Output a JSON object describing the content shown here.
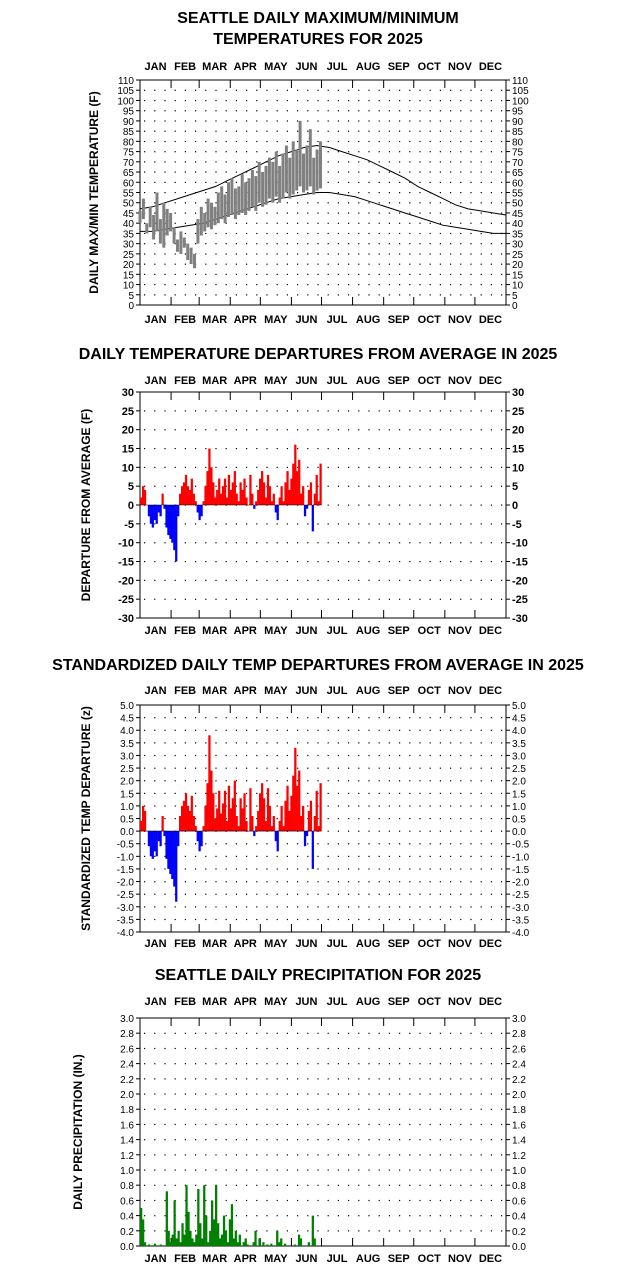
{
  "chart_data": [
    {
      "type": "line",
      "title": "SEATTLE DAILY MAXIMUM/MINIMUM",
      "subtitle": "TEMPERATURES FOR 2025",
      "ylabel": "DAILY MAX/MIN TEMPERATURE (F)",
      "ylim": [
        0,
        110
      ],
      "yticks": [
        0,
        5,
        10,
        15,
        20,
        25,
        30,
        35,
        40,
        45,
        50,
        55,
        60,
        65,
        70,
        75,
        80,
        85,
        90,
        95,
        100,
        105,
        110
      ],
      "months": [
        "JAN",
        "FEB",
        "MAR",
        "APR",
        "MAY",
        "JUN",
        "JUL",
        "AUG",
        "SEP",
        "OCT",
        "NOV",
        "DEC"
      ],
      "grid": true,
      "series": [
        {
          "values": [
            47,
            48,
            50,
            52,
            54,
            56,
            58,
            61,
            64,
            67,
            70,
            73,
            75,
            77,
            78,
            77,
            75,
            73,
            71,
            68,
            65,
            62,
            58,
            55,
            52,
            49,
            47,
            46,
            45,
            44
          ]
        },
        {
          "values": [
            36,
            36,
            37,
            38,
            39,
            40,
            42,
            44,
            46,
            48,
            50,
            52,
            53,
            54,
            55,
            55,
            54,
            53,
            51,
            49,
            47,
            45,
            43,
            41,
            39,
            38,
            37,
            36,
            35,
            35
          ]
        },
        {
          "values": [
            46,
            52,
            40,
            48,
            44,
            55,
            42,
            50,
            47,
            45,
            38,
            32,
            36,
            33,
            30,
            28,
            25,
            42,
            48,
            45,
            52,
            50,
            48,
            55,
            58,
            54,
            60,
            62,
            57,
            58,
            64,
            60,
            62,
            66,
            63,
            70,
            65,
            68,
            72,
            70,
            75,
            68,
            74,
            78,
            72,
            80,
            76,
            90,
            74,
            78,
            86,
            72,
            76,
            80
          ],
          "lows": [
            40,
            42,
            35,
            38,
            32,
            36,
            30,
            28,
            34,
            36,
            30,
            26,
            25,
            28,
            22,
            20,
            18,
            30,
            34,
            36,
            38,
            37,
            39,
            40,
            42,
            40,
            43,
            44,
            42,
            44,
            45,
            44,
            46,
            48,
            46,
            50,
            48,
            49,
            52,
            50,
            53,
            50,
            52,
            55,
            52,
            54,
            56,
            58,
            55,
            56,
            58,
            54,
            56,
            57
          ]
        }
      ]
    },
    {
      "type": "bar",
      "title": "DAILY TEMPERATURE DEPARTURES FROM AVERAGE IN 2025",
      "ylabel": "DEPARTURE FROM AVERAGE (F)",
      "ylim": [
        -30,
        30
      ],
      "yticks": [
        -30,
        -25,
        -20,
        -15,
        -10,
        -5,
        0,
        5,
        10,
        15,
        20,
        25,
        30
      ],
      "months": [
        "JAN",
        "FEB",
        "MAR",
        "APR",
        "MAY",
        "JUN",
        "JUL",
        "AUG",
        "SEP",
        "OCT",
        "NOV",
        "DEC"
      ],
      "grid": true,
      "values": [
        2,
        5,
        4,
        0,
        -3,
        -5,
        -6,
        -4,
        -5,
        -2,
        -3,
        3,
        -1,
        -6,
        -8,
        -9,
        -10,
        -12,
        -15,
        -3,
        3,
        5,
        6,
        8,
        5,
        4,
        7,
        3,
        1,
        -2,
        -4,
        -3,
        1,
        5,
        9,
        15,
        10,
        6,
        2,
        4,
        7,
        3,
        5,
        7,
        2,
        8,
        4,
        6,
        9,
        3,
        1,
        6,
        4,
        7,
        2,
        0,
        8,
        3,
        -1,
        1,
        4,
        7,
        9,
        6,
        2,
        8,
        5,
        1,
        3,
        -2,
        -4,
        2,
        5,
        1,
        6,
        9,
        4,
        7,
        11,
        16,
        9,
        12,
        3,
        5,
        -3,
        -1,
        4,
        6,
        -7,
        3,
        8,
        1,
        11
      ]
    },
    {
      "type": "bar",
      "title": "STANDARDIZED DAILY TEMP DEPARTURES FROM AVERAGE IN 2025",
      "ylabel": "STANDARDIZED TEMP DEPARTURE (z)",
      "ylim": [
        -4.0,
        5.0
      ],
      "yticks": [
        "-4.0",
        "-3.5",
        "-3.0",
        "-2.5",
        "-2.0",
        "-1.5",
        "-1.0",
        "-0.5",
        "0.0",
        "0.5",
        "1.0",
        "1.5",
        "2.0",
        "2.5",
        "3.0",
        "3.5",
        "4.0",
        "4.5",
        "5.0"
      ],
      "months": [
        "JAN",
        "FEB",
        "MAR",
        "APR",
        "MAY",
        "JUN",
        "JUL",
        "AUG",
        "SEP",
        "OCT",
        "NOV",
        "DEC"
      ],
      "grid": true,
      "values": [
        0.4,
        1.0,
        0.8,
        0.0,
        -0.6,
        -1.0,
        -1.1,
        -0.8,
        -1.0,
        -0.4,
        -0.6,
        0.6,
        -0.2,
        -1.1,
        -1.5,
        -1.7,
        -1.9,
        -2.2,
        -2.8,
        -0.6,
        0.6,
        1.0,
        1.2,
        1.5,
        1.0,
        0.8,
        1.4,
        0.6,
        0.2,
        -0.4,
        -0.8,
        -0.6,
        0.2,
        1.0,
        1.9,
        3.8,
        2.4,
        1.5,
        0.5,
        0.9,
        1.6,
        0.7,
        1.1,
        1.6,
        0.4,
        1.8,
        0.9,
        1.3,
        2.0,
        0.6,
        0.2,
        1.3,
        0.9,
        1.5,
        0.4,
        0.0,
        1.7,
        0.6,
        -0.2,
        0.2,
        0.8,
        1.5,
        1.9,
        1.3,
        0.4,
        1.7,
        1.0,
        0.2,
        0.6,
        -0.4,
        -0.8,
        0.4,
        1.0,
        0.2,
        1.2,
        1.8,
        0.8,
        1.4,
        2.2,
        3.3,
        1.8,
        2.4,
        0.6,
        1.0,
        -0.6,
        -0.2,
        0.8,
        1.2,
        -1.5,
        0.6,
        1.6,
        0.2,
        1.9
      ]
    },
    {
      "type": "bar",
      "title": "SEATTLE DAILY PRECIPITATION FOR 2025",
      "ylabel": "DAILY PRECIPITATION (IN.)",
      "ylim": [
        0,
        3.0
      ],
      "yticks": [
        "0.0",
        "0.2",
        "0.4",
        "0.6",
        "0.8",
        "1.0",
        "1.2",
        "1.4",
        "1.6",
        "1.8",
        "2.0",
        "2.2",
        "2.4",
        "2.6",
        "2.8",
        "3.0"
      ],
      "months": [
        "JAN",
        "FEB",
        "MAR",
        "APR",
        "MAY",
        "JUN",
        "JUL",
        "AUG",
        "SEP",
        "OCT",
        "NOV",
        "DEC"
      ],
      "grid": true,
      "values": [
        0.5,
        0.35,
        0.05,
        0.0,
        0.02,
        0.0,
        0.0,
        0.03,
        0.0,
        0.0,
        0.02,
        0.0,
        0.0,
        0.72,
        0.2,
        0.05,
        0.15,
        0.6,
        0.1,
        0.2,
        0.05,
        0.3,
        0.15,
        0.8,
        0.45,
        0.2,
        0.1,
        0.05,
        0.15,
        0.75,
        0.3,
        0.1,
        0.8,
        0.4,
        0.05,
        0.2,
        0.6,
        0.35,
        0.8,
        0.3,
        0.1,
        0.15,
        0.4,
        0.2,
        0.05,
        0.35,
        0.55,
        0.1,
        0.2,
        0.05,
        0.15,
        0.0,
        0.05,
        0.1,
        0.02,
        0.0,
        0.0,
        0.05,
        0.2,
        0.0,
        0.1,
        0.0,
        0.05,
        0.0,
        0.02,
        0.0,
        0.03,
        0.0,
        0.0,
        0.2,
        0.05,
        0.1,
        0.0,
        0.03,
        0.0,
        0.0,
        0.0,
        0.0,
        0.02,
        0.0,
        0.15,
        0.1,
        0.0,
        0.0,
        0.0,
        0.05,
        0.0,
        0.4,
        0.1,
        0.0,
        0.0,
        0.0,
        0.0
      ]
    }
  ]
}
